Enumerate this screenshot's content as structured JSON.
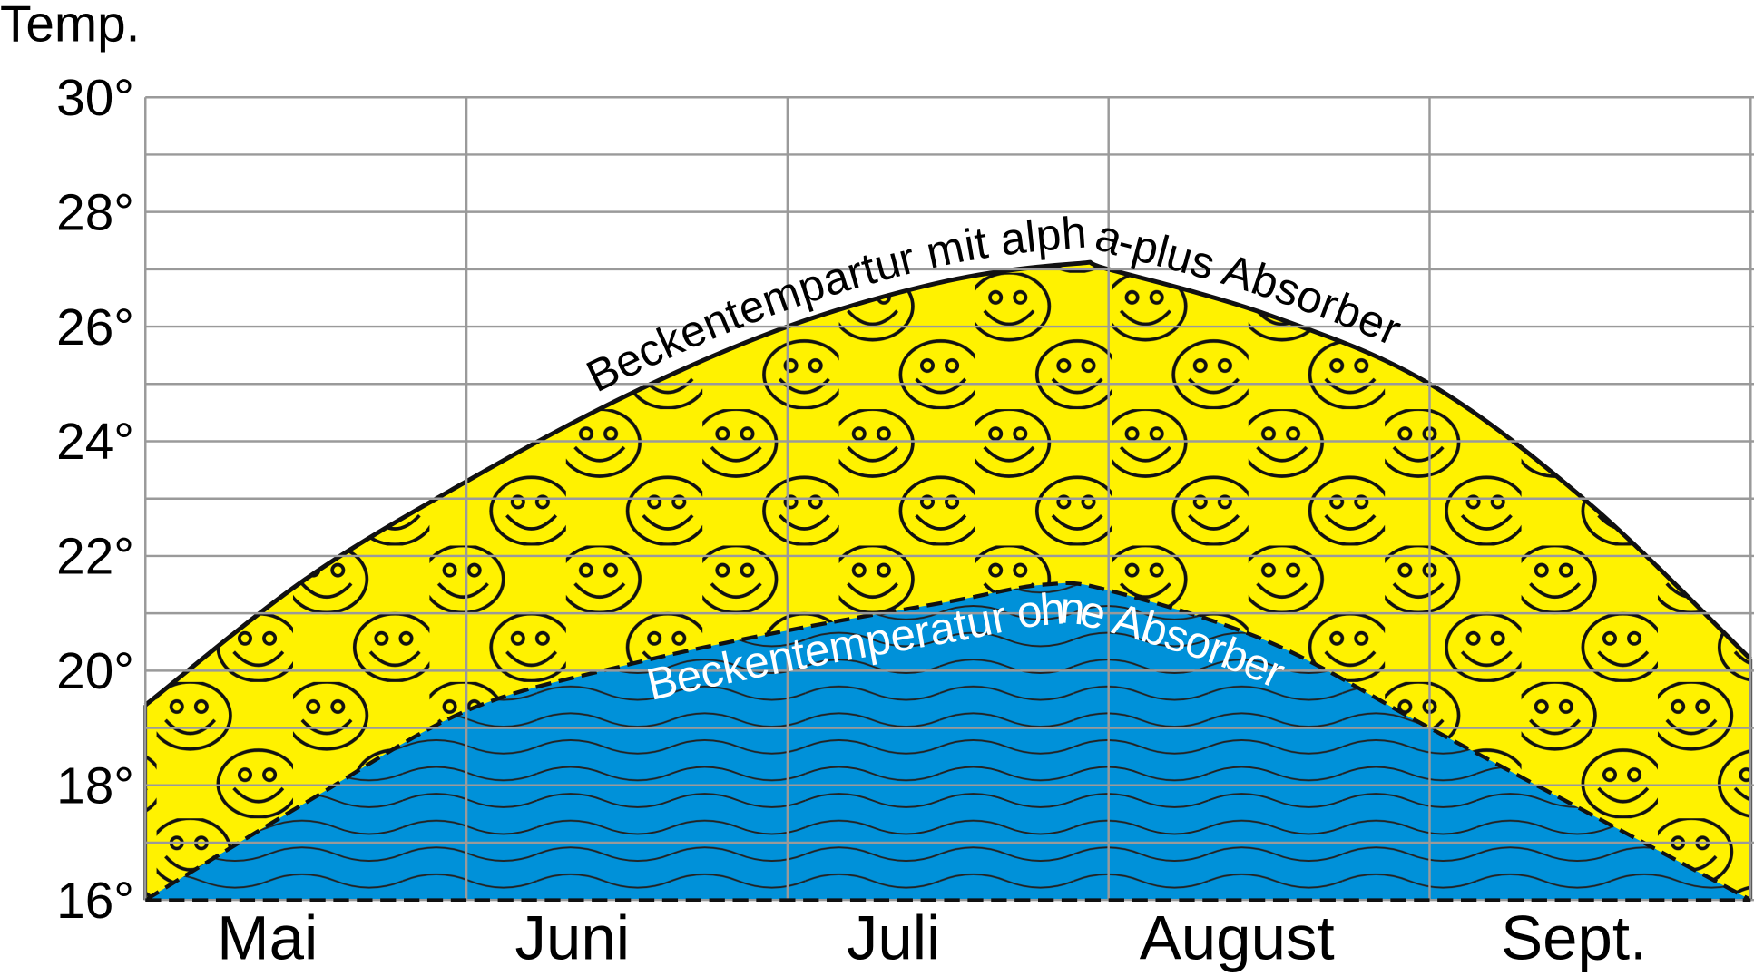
{
  "chart_data": {
    "type": "area",
    "ylabel": "Temp.",
    "ylim": [
      16,
      30
    ],
    "y_ticks": [
      "16°",
      "18°",
      "20°",
      "22°",
      "24°",
      "26°",
      "28°",
      "30°"
    ],
    "y_tick_values": [
      16,
      18,
      20,
      22,
      24,
      26,
      28,
      30
    ],
    "grid": true,
    "categories": [
      "Mai",
      "Juni",
      "Juli",
      "August",
      "Sept."
    ],
    "series": [
      {
        "name": "Beckentempartur mit alpha-plus Absorber",
        "x": [
          0,
          0.5,
          1.0,
          1.5,
          2.0,
          2.5,
          2.9,
          3.0,
          3.5,
          4.0,
          4.5,
          5.0
        ],
        "values": [
          19.4,
          21.6,
          23.3,
          24.8,
          26.0,
          26.8,
          27.1,
          27.0,
          26.2,
          25.0,
          22.9,
          20.2
        ],
        "fill": "#FFF200",
        "pattern": "smiley-faces",
        "line": "solid"
      },
      {
        "name": "Beckentemperatur ohne Absorber",
        "x": [
          0,
          0.5,
          1.0,
          1.5,
          2.0,
          2.5,
          2.8,
          3.0,
          3.5,
          4.0,
          4.5,
          5.0
        ],
        "values": [
          16.0,
          17.7,
          19.3,
          20.1,
          20.7,
          21.2,
          21.5,
          21.4,
          20.5,
          19.0,
          17.5,
          16.0
        ],
        "fill": "#0091D9",
        "pattern": "waves",
        "line": "dashed"
      }
    ]
  }
}
